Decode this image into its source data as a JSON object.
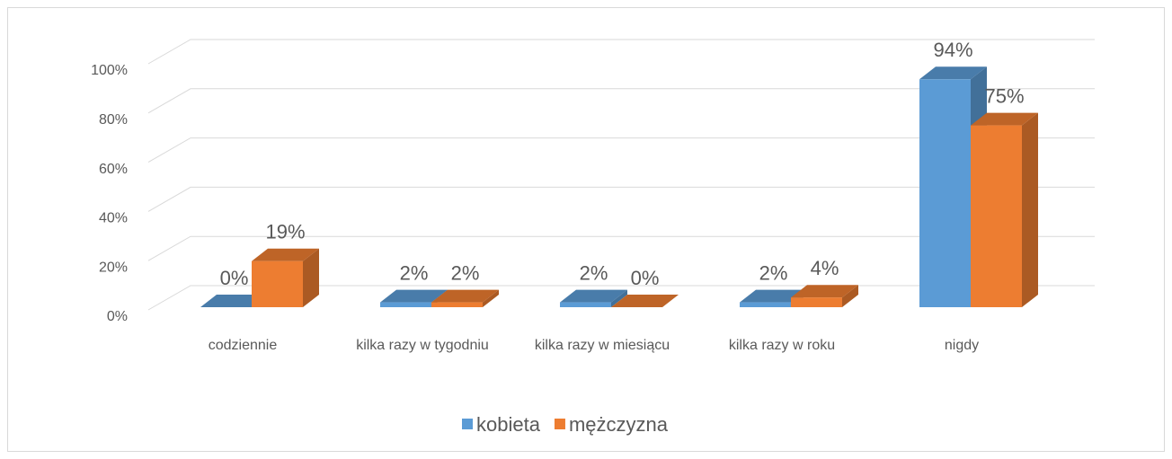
{
  "chart_data": {
    "type": "bar3d",
    "categories": [
      "codziennie",
      "kilka razy w tygodniu",
      "kilka razy w miesiącu",
      "kilka razy w roku",
      "nigdy"
    ],
    "series": [
      {
        "name": "kobieta",
        "color": "#5b9bd5",
        "values": [
          0,
          2,
          2,
          2,
          94
        ],
        "value_labels": [
          "0%",
          "2%",
          "2%",
          "2%",
          "94%"
        ]
      },
      {
        "name": "mężczyzna",
        "color": "#ed7d31",
        "values": [
          19,
          2,
          0,
          4,
          75
        ],
        "value_labels": [
          "19%",
          "2%",
          "0%",
          "4%",
          "75%"
        ]
      }
    ],
    "ylim": [
      0,
      100
    ],
    "yticks": [
      {
        "value": 0,
        "label": "0%"
      },
      {
        "value": 20,
        "label": "20%"
      },
      {
        "value": 40,
        "label": "40%"
      },
      {
        "value": 60,
        "label": "60%"
      },
      {
        "value": 80,
        "label": "80%"
      },
      {
        "value": 100,
        "label": "100%"
      }
    ],
    "grid": true,
    "legend": "bottom"
  }
}
